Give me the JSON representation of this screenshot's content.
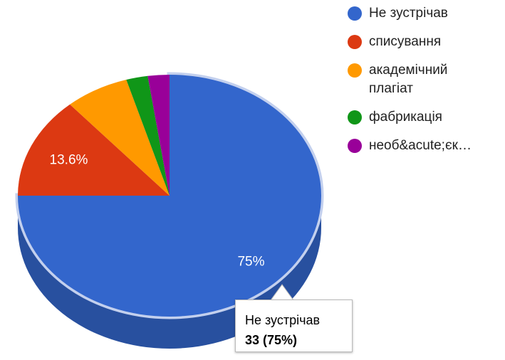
{
  "chart_data": {
    "type": "pie",
    "is3D": true,
    "categories": [
      "Не зустрічав",
      "списування",
      "академічний плагіат",
      "фабрикація",
      "необ&acute;єк…"
    ],
    "values": [
      75,
      13.6,
      6.8,
      2.3,
      2.3
    ],
    "value_labels": [
      "75%",
      "13.6%",
      null,
      null,
      null
    ],
    "colors": [
      "#3366cc",
      "#dc3912",
      "#ff9900",
      "#109618",
      "#990099"
    ],
    "legend": "right",
    "highlighted": 0,
    "tooltip": {
      "text": "33 (75%)"
    }
  }
}
